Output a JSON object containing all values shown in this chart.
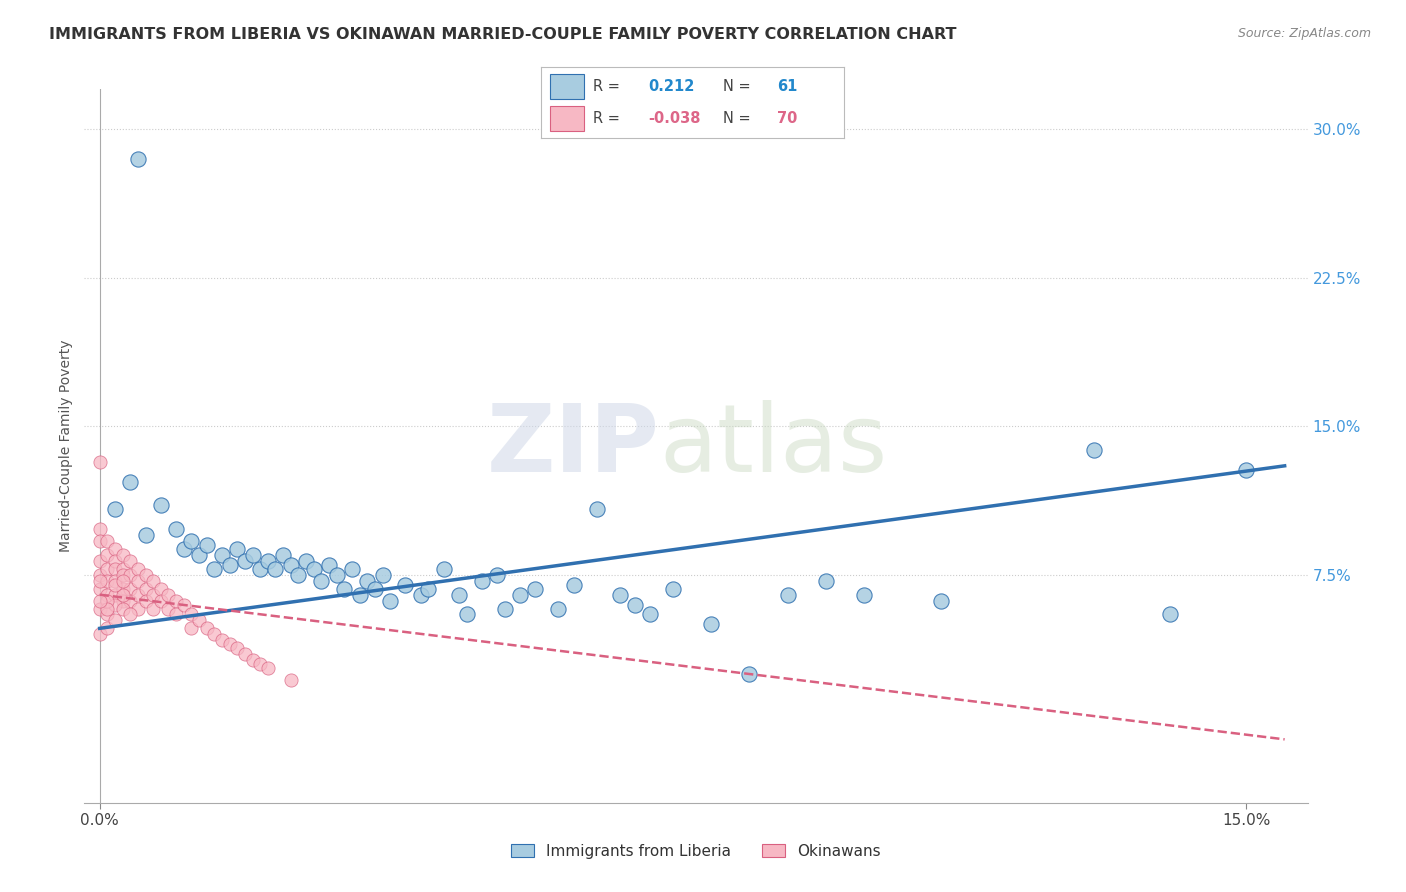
{
  "title": "IMMIGRANTS FROM LIBERIA VS OKINAWAN MARRIED-COUPLE FAMILY POVERTY CORRELATION CHART",
  "source": "Source: ZipAtlas.com",
  "ylabel": "Married-Couple Family Poverty",
  "legend_label1": "Immigrants from Liberia",
  "legend_label2": "Okinawans",
  "r1": 0.212,
  "n1": 61,
  "r2": -0.038,
  "n2": 70,
  "xlim": [
    -0.002,
    0.158
  ],
  "ylim": [
    -0.04,
    0.32
  ],
  "x_ticks": [
    0.0,
    0.15
  ],
  "x_tick_labels": [
    "0.0%",
    "15.0%"
  ],
  "y_ticks_right": [
    0.075,
    0.15,
    0.225,
    0.3
  ],
  "y_tick_labels_right": [
    "7.5%",
    "15.0%",
    "22.5%",
    "30.0%"
  ],
  "color_blue": "#a8cce0",
  "color_pink": "#f7b8c4",
  "trendline_blue": "#3070b0",
  "trendline_pink": "#d96080",
  "watermark_zip": "ZIP",
  "watermark_atlas": "atlas",
  "background": "#ffffff",
  "scatter_blue": [
    [
      0.005,
      0.285
    ],
    [
      0.002,
      0.108
    ],
    [
      0.004,
      0.122
    ],
    [
      0.006,
      0.095
    ],
    [
      0.008,
      0.11
    ],
    [
      0.01,
      0.098
    ],
    [
      0.011,
      0.088
    ],
    [
      0.012,
      0.092
    ],
    [
      0.013,
      0.085
    ],
    [
      0.014,
      0.09
    ],
    [
      0.015,
      0.078
    ],
    [
      0.016,
      0.085
    ],
    [
      0.017,
      0.08
    ],
    [
      0.018,
      0.088
    ],
    [
      0.019,
      0.082
    ],
    [
      0.02,
      0.085
    ],
    [
      0.021,
      0.078
    ],
    [
      0.022,
      0.082
    ],
    [
      0.023,
      0.078
    ],
    [
      0.024,
      0.085
    ],
    [
      0.025,
      0.08
    ],
    [
      0.026,
      0.075
    ],
    [
      0.027,
      0.082
    ],
    [
      0.028,
      0.078
    ],
    [
      0.029,
      0.072
    ],
    [
      0.03,
      0.08
    ],
    [
      0.031,
      0.075
    ],
    [
      0.032,
      0.068
    ],
    [
      0.033,
      0.078
    ],
    [
      0.034,
      0.065
    ],
    [
      0.035,
      0.072
    ],
    [
      0.036,
      0.068
    ],
    [
      0.037,
      0.075
    ],
    [
      0.038,
      0.062
    ],
    [
      0.04,
      0.07
    ],
    [
      0.042,
      0.065
    ],
    [
      0.043,
      0.068
    ],
    [
      0.045,
      0.078
    ],
    [
      0.047,
      0.065
    ],
    [
      0.048,
      0.055
    ],
    [
      0.05,
      0.072
    ],
    [
      0.052,
      0.075
    ],
    [
      0.053,
      0.058
    ],
    [
      0.055,
      0.065
    ],
    [
      0.057,
      0.068
    ],
    [
      0.06,
      0.058
    ],
    [
      0.062,
      0.07
    ],
    [
      0.065,
      0.108
    ],
    [
      0.068,
      0.065
    ],
    [
      0.07,
      0.06
    ],
    [
      0.072,
      0.055
    ],
    [
      0.075,
      0.068
    ],
    [
      0.08,
      0.05
    ],
    [
      0.085,
      0.025
    ],
    [
      0.09,
      0.065
    ],
    [
      0.095,
      0.072
    ],
    [
      0.1,
      0.065
    ],
    [
      0.11,
      0.062
    ],
    [
      0.13,
      0.138
    ],
    [
      0.14,
      0.055
    ],
    [
      0.15,
      0.128
    ]
  ],
  "scatter_pink": [
    [
      0.0,
      0.132
    ],
    [
      0.0,
      0.098
    ],
    [
      0.0,
      0.092
    ],
    [
      0.0,
      0.082
    ],
    [
      0.0,
      0.075
    ],
    [
      0.0,
      0.068
    ],
    [
      0.001,
      0.092
    ],
    [
      0.001,
      0.085
    ],
    [
      0.001,
      0.078
    ],
    [
      0.001,
      0.072
    ],
    [
      0.001,
      0.065
    ],
    [
      0.002,
      0.088
    ],
    [
      0.002,
      0.082
    ],
    [
      0.002,
      0.078
    ],
    [
      0.002,
      0.072
    ],
    [
      0.002,
      0.065
    ],
    [
      0.003,
      0.085
    ],
    [
      0.003,
      0.078
    ],
    [
      0.003,
      0.075
    ],
    [
      0.003,
      0.068
    ],
    [
      0.003,
      0.062
    ],
    [
      0.004,
      0.082
    ],
    [
      0.004,
      0.075
    ],
    [
      0.004,
      0.068
    ],
    [
      0.004,
      0.062
    ],
    [
      0.005,
      0.078
    ],
    [
      0.005,
      0.072
    ],
    [
      0.005,
      0.065
    ],
    [
      0.005,
      0.058
    ],
    [
      0.006,
      0.075
    ],
    [
      0.006,
      0.068
    ],
    [
      0.006,
      0.062
    ],
    [
      0.007,
      0.072
    ],
    [
      0.007,
      0.065
    ],
    [
      0.007,
      0.058
    ],
    [
      0.008,
      0.068
    ],
    [
      0.008,
      0.062
    ],
    [
      0.009,
      0.065
    ],
    [
      0.009,
      0.058
    ],
    [
      0.01,
      0.062
    ],
    [
      0.01,
      0.055
    ],
    [
      0.011,
      0.06
    ],
    [
      0.012,
      0.055
    ],
    [
      0.012,
      0.048
    ],
    [
      0.013,
      0.052
    ],
    [
      0.014,
      0.048
    ],
    [
      0.015,
      0.045
    ],
    [
      0.016,
      0.042
    ],
    [
      0.017,
      0.04
    ],
    [
      0.018,
      0.038
    ],
    [
      0.019,
      0.035
    ],
    [
      0.02,
      0.032
    ],
    [
      0.021,
      0.03
    ],
    [
      0.022,
      0.028
    ],
    [
      0.025,
      0.022
    ],
    [
      0.0,
      0.058
    ],
    [
      0.001,
      0.055
    ],
    [
      0.002,
      0.06
    ],
    [
      0.003,
      0.058
    ],
    [
      0.0,
      0.045
    ],
    [
      0.001,
      0.048
    ],
    [
      0.002,
      0.052
    ],
    [
      0.004,
      0.055
    ],
    [
      0.001,
      0.062
    ],
    [
      0.0,
      0.072
    ],
    [
      0.003,
      0.065
    ],
    [
      0.002,
      0.07
    ],
    [
      0.001,
      0.058
    ],
    [
      0.0,
      0.062
    ],
    [
      0.003,
      0.072
    ]
  ]
}
